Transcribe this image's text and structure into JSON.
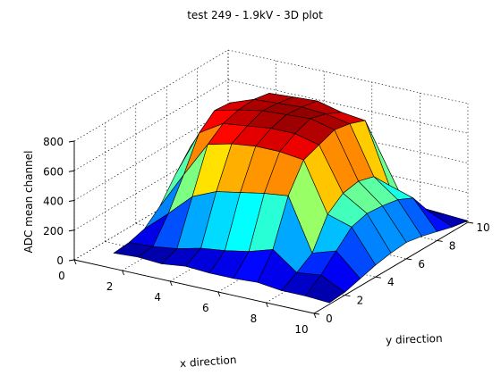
{
  "window": {
    "title": "test 249 - 1.9kV - 3D plot"
  },
  "chart_data": {
    "type": "surface3d",
    "title": "test 249 - 1.9kV - 3D plot",
    "xlabel": "x direction",
    "ylabel": "y direction",
    "zlabel": "ADC mean channel",
    "x": [
      1,
      2,
      3,
      4,
      5,
      6,
      7,
      8,
      9,
      10
    ],
    "y": [
      1,
      2,
      3,
      4,
      5,
      6,
      7,
      8,
      9,
      10
    ],
    "xlim": [
      0,
      10
    ],
    "ylim": [
      0,
      10
    ],
    "zlim": [
      0,
      800
    ],
    "xticks": [
      "0",
      "2",
      "4",
      "6",
      "8",
      "10"
    ],
    "yticks": [
      "0",
      "2",
      "4",
      "6",
      "8",
      "10"
    ],
    "zticks": [
      "0",
      "200",
      "400",
      "600",
      "800"
    ],
    "colormap": "jet",
    "color_range": [
      0,
      800
    ],
    "grid": true,
    "z": [
      [
        20,
        30,
        60,
        150,
        300,
        430,
        500,
        400,
        80,
        30
      ],
      [
        30,
        40,
        200,
        400,
        620,
        710,
        700,
        620,
        150,
        40
      ],
      [
        20,
        60,
        350,
        640,
        720,
        750,
        760,
        740,
        300,
        50
      ],
      [
        40,
        100,
        420,
        680,
        740,
        780,
        770,
        750,
        450,
        60
      ],
      [
        30,
        120,
        450,
        700,
        760,
        790,
        780,
        760,
        480,
        70
      ],
      [
        30,
        150,
        480,
        700,
        760,
        800,
        770,
        720,
        460,
        80
      ],
      [
        40,
        200,
        500,
        680,
        720,
        760,
        740,
        700,
        420,
        60
      ],
      [
        20,
        80,
        150,
        350,
        430,
        450,
        420,
        300,
        120,
        30
      ],
      [
        20,
        100,
        200,
        300,
        330,
        320,
        300,
        250,
        100,
        20
      ],
      [
        10,
        20,
        50,
        80,
        100,
        110,
        90,
        60,
        30,
        10
      ]
    ]
  }
}
